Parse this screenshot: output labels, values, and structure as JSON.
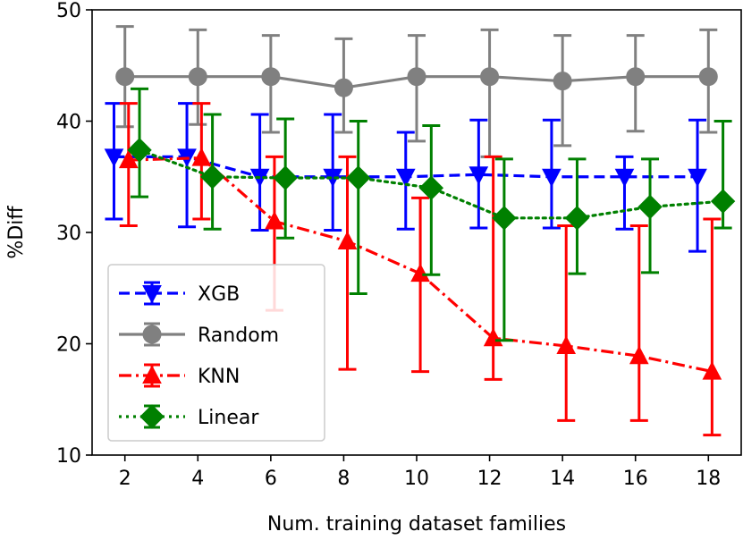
{
  "chart_data": {
    "type": "line",
    "title": "",
    "xlabel": "Num. training dataset families",
    "ylabel": "%Diff",
    "xlim": [
      1.1,
      18.9
    ],
    "ylim": [
      10,
      50
    ],
    "xticks": [
      2,
      4,
      6,
      8,
      10,
      12,
      14,
      16,
      18
    ],
    "yticks": [
      10,
      20,
      30,
      40,
      50
    ],
    "xtick_labels": [
      "2",
      "4",
      "6",
      "8",
      "10",
      "12",
      "14",
      "16",
      "18"
    ],
    "ytick_labels": [
      "10",
      "20",
      "30",
      "40",
      "50"
    ],
    "grid": false,
    "legend_position": "lower-left",
    "series": [
      {
        "name": "XGB",
        "color": "#0000ff",
        "linestyle": "dashed",
        "marker": "triangle-down",
        "offset": -0.3,
        "x": [
          2,
          4,
          6,
          8,
          10,
          12,
          14,
          16,
          18
        ],
        "y": [
          36.8,
          36.8,
          35.0,
          35.0,
          35.0,
          35.2,
          35.0,
          35.0,
          35.0
        ],
        "err_low": [
          31.2,
          30.5,
          30.2,
          30.2,
          30.3,
          30.4,
          30.4,
          30.3,
          28.3
        ],
        "err_high": [
          41.6,
          41.6,
          40.6,
          40.6,
          39.0,
          40.1,
          40.1,
          36.8,
          40.1
        ]
      },
      {
        "name": "Random",
        "color": "#808080",
        "linestyle": "solid",
        "marker": "circle",
        "offset": 0.0,
        "x": [
          2,
          4,
          6,
          8,
          10,
          12,
          14,
          16,
          18
        ],
        "y": [
          44.0,
          44.0,
          44.0,
          43.0,
          44.0,
          44.0,
          43.6,
          44.0,
          44.0
        ],
        "err_low": [
          39.5,
          39.7,
          39.0,
          39.0,
          38.2,
          36.8,
          37.8,
          39.1,
          39.0
        ],
        "err_high": [
          48.5,
          48.2,
          47.7,
          47.4,
          47.7,
          48.2,
          47.7,
          47.7,
          48.2
        ]
      },
      {
        "name": "KNN",
        "color": "#ff0000",
        "linestyle": "dashdot",
        "marker": "triangle-up",
        "offset": 0.1,
        "x": [
          2,
          4,
          6,
          8,
          10,
          12,
          14,
          16,
          18
        ],
        "y": [
          36.5,
          36.7,
          31.0,
          29.2,
          26.3,
          20.5,
          19.8,
          18.9,
          17.5
        ],
        "err_low": [
          30.6,
          31.2,
          23.0,
          17.7,
          17.5,
          16.8,
          13.1,
          13.1,
          11.8
        ],
        "err_high": [
          41.6,
          41.6,
          36.8,
          36.8,
          33.1,
          36.8,
          30.6,
          30.6,
          31.2
        ]
      },
      {
        "name": "Linear",
        "color": "#008000",
        "linestyle": "dotted",
        "marker": "diamond",
        "offset": 0.4,
        "x": [
          2,
          4,
          6,
          8,
          10,
          12,
          14,
          16,
          18
        ],
        "y": [
          37.4,
          35.0,
          34.9,
          34.9,
          34.0,
          31.3,
          31.3,
          32.3,
          32.8
        ],
        "err_low": [
          33.2,
          30.3,
          29.5,
          24.5,
          26.2,
          20.3,
          26.3,
          26.4,
          30.4
        ],
        "err_high": [
          42.9,
          40.6,
          40.2,
          40.0,
          39.6,
          36.6,
          36.6,
          36.6,
          40.0
        ]
      }
    ]
  }
}
